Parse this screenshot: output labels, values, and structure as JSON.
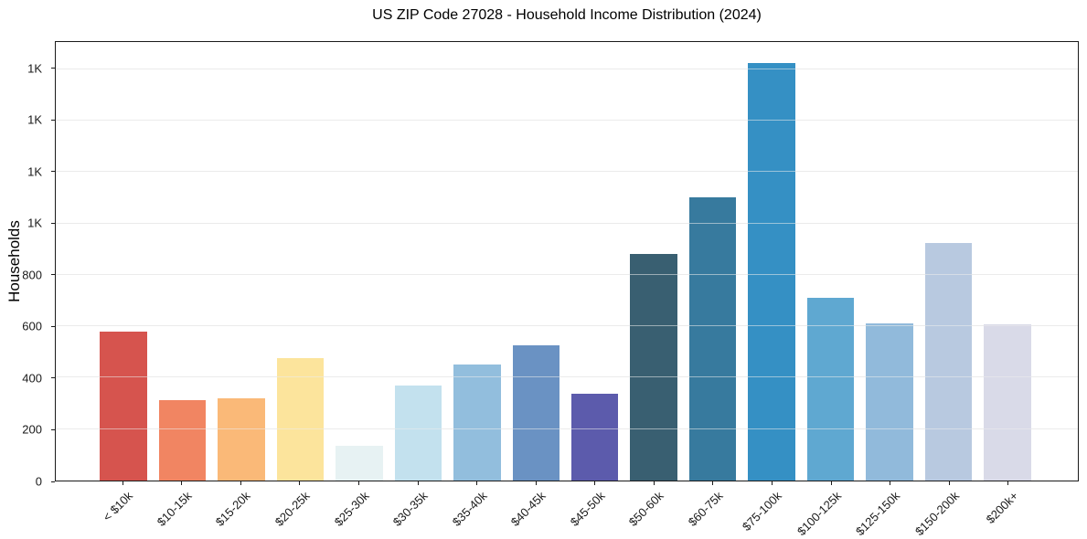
{
  "chart_data": {
    "type": "bar",
    "title": "US ZIP Code 27028 - Household Income Distribution (2024)",
    "xlabel": "",
    "ylabel": "Households",
    "categories": [
      "< $10k",
      "$10-15k",
      "$15-20k",
      "$20-25k",
      "$25-30k",
      "$30-35k",
      "$35-40k",
      "$40-45k",
      "$45-50k",
      "$50-60k",
      "$60-75k",
      "$75-100k",
      "$100-125k",
      "$125-150k",
      "$150-200k",
      "$200k+"
    ],
    "values": [
      580,
      312,
      320,
      477,
      134,
      368,
      450,
      527,
      337,
      880,
      1101,
      1625,
      711,
      612,
      924,
      609
    ],
    "bar_colors": [
      "#d6544e",
      "#f18562",
      "#fab978",
      "#fce49c",
      "#e7f2f3",
      "#c3e1ee",
      "#92bedd",
      "#6a92c3",
      "#5c5bac",
      "#395f71",
      "#377a9e",
      "#3590c4",
      "#5fa8d1",
      "#91badb",
      "#b8c9e0",
      "#d9dae8"
    ],
    "ylim": [
      0,
      1706
    ],
    "yticks": [
      {
        "value": 0,
        "label": "0"
      },
      {
        "value": 200,
        "label": "200"
      },
      {
        "value": 400,
        "label": "400"
      },
      {
        "value": 600,
        "label": "600"
      },
      {
        "value": 800,
        "label": "800"
      },
      {
        "value": 1000,
        "label": "1K"
      },
      {
        "value": 1200,
        "label": "1K"
      },
      {
        "value": 1400,
        "label": "1K"
      },
      {
        "value": 1600,
        "label": "1K"
      }
    ],
    "grid": true,
    "grid_color": "#e8e8e8",
    "legend_position": "none"
  }
}
